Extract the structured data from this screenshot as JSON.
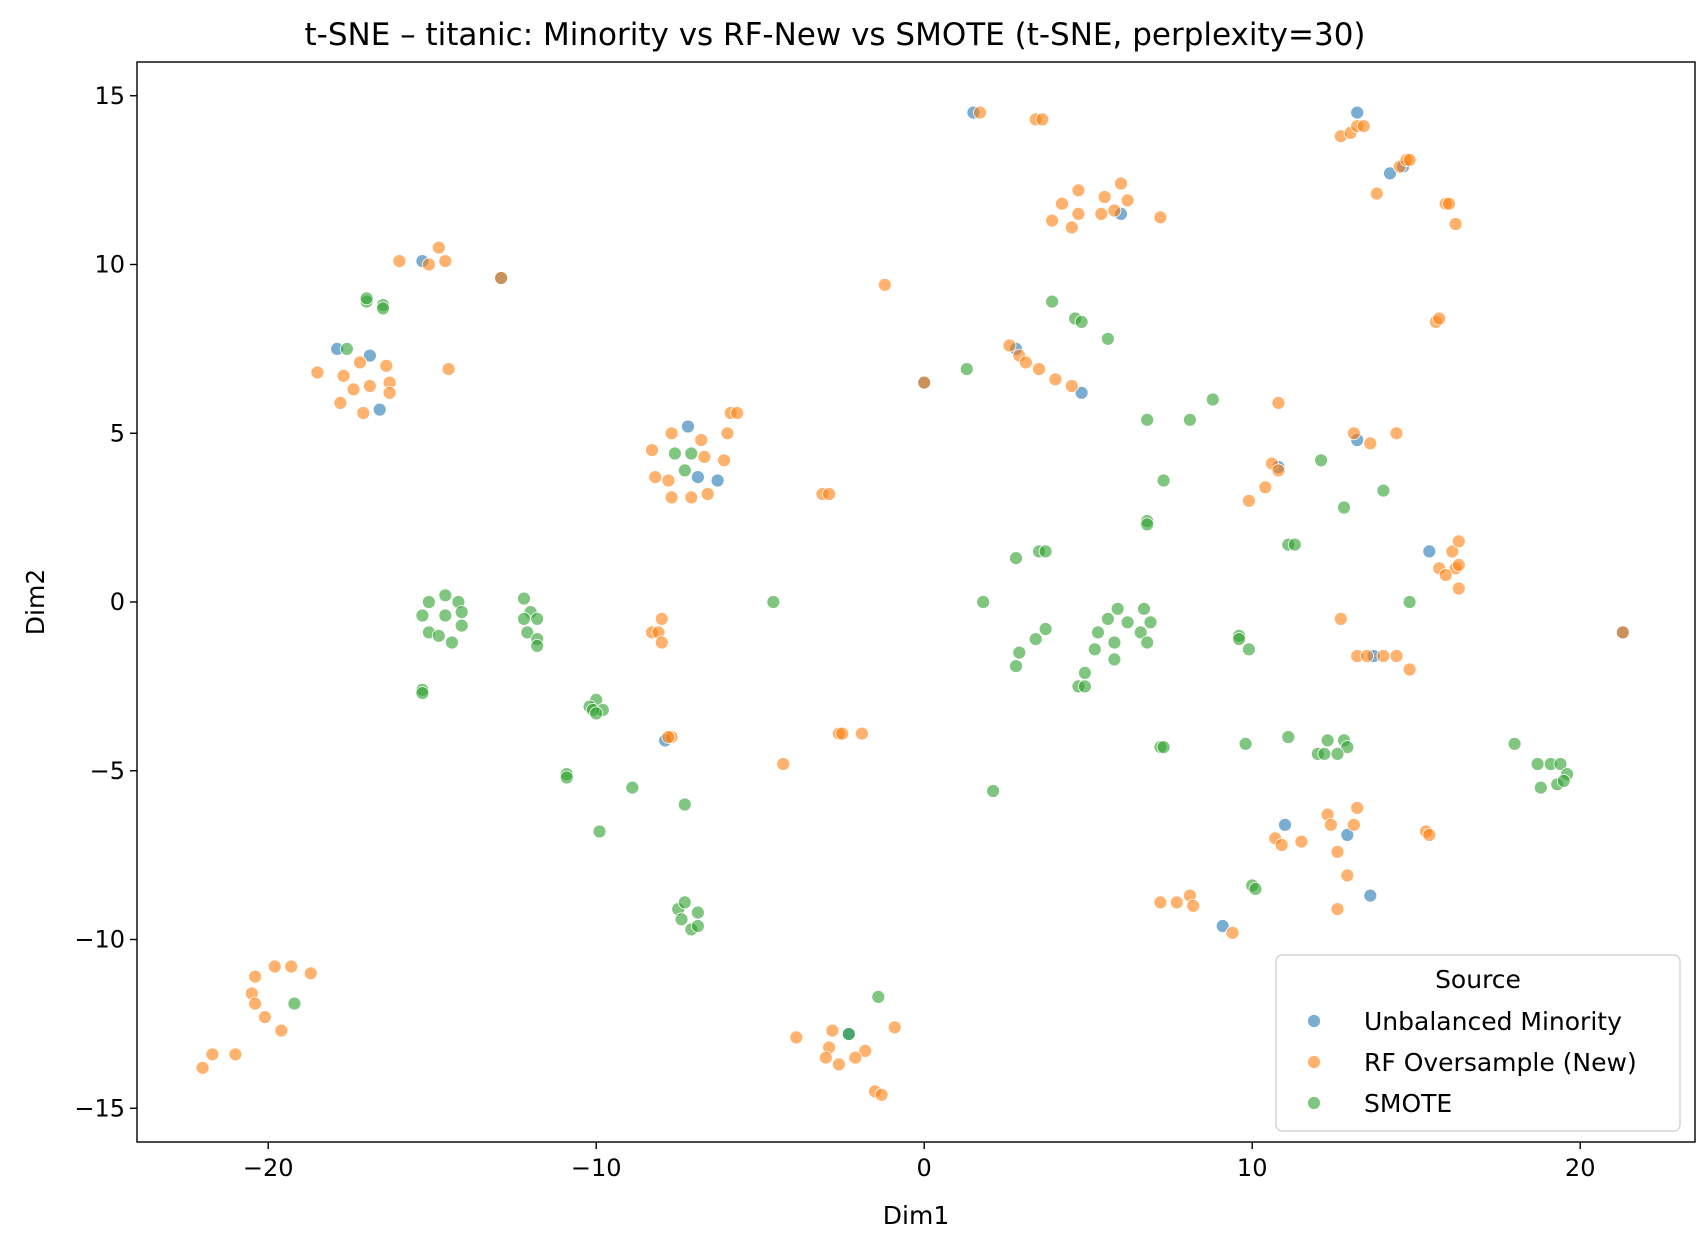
{
  "chart_data": {
    "type": "scatter",
    "title": "t-SNE – titanic: Minority vs RF-New vs SMOTE (t-SNE, perplexity=30)",
    "xlabel": "Dim1",
    "ylabel": "Dim2",
    "xlim": [
      -24,
      23.5
    ],
    "ylim": [
      -16,
      16
    ],
    "xticks": [
      -20,
      -10,
      0,
      10,
      20
    ],
    "xtick_labels": [
      "−20",
      "−10",
      "0",
      "10",
      "20"
    ],
    "yticks": [
      15,
      10,
      5,
      0,
      -5,
      -10,
      -15
    ],
    "ytick_labels": [
      "15",
      "10",
      "5",
      "0",
      "−5",
      "−10",
      "−15"
    ],
    "grid": false,
    "legend": {
      "title": "Source",
      "placement": "lower-right"
    },
    "series": [
      {
        "name": "Unbalanced Minority",
        "color": "#1f77b4",
        "points": [
          [
            1.5,
            14.5
          ],
          [
            13.2,
            14.5
          ],
          [
            14.2,
            12.7
          ],
          [
            14.6,
            12.9
          ],
          [
            6.0,
            11.5
          ],
          [
            -15.3,
            10.1
          ],
          [
            -12.9,
            9.6
          ],
          [
            -17.9,
            7.5
          ],
          [
            -16.9,
            7.3
          ],
          [
            -16.6,
            5.7
          ],
          [
            2.8,
            7.5
          ],
          [
            4.8,
            6.2
          ],
          [
            0.0,
            6.5
          ],
          [
            -7.2,
            5.2
          ],
          [
            -6.9,
            3.7
          ],
          [
            -6.3,
            3.6
          ],
          [
            10.8,
            4.0
          ],
          [
            13.2,
            4.8
          ],
          [
            15.4,
            1.5
          ],
          [
            21.3,
            -0.9
          ],
          [
            13.7,
            -1.6
          ],
          [
            -7.9,
            -4.1
          ],
          [
            -2.3,
            -12.8
          ],
          [
            11.0,
            -6.6
          ],
          [
            12.9,
            -6.9
          ],
          [
            13.6,
            -8.7
          ],
          [
            9.1,
            -9.6
          ]
        ]
      },
      {
        "name": "RF Oversample (New)",
        "color": "#ff7f0e",
        "points": [
          [
            1.7,
            14.5
          ],
          [
            3.4,
            14.3
          ],
          [
            3.6,
            14.3
          ],
          [
            12.7,
            13.8
          ],
          [
            13.0,
            13.9
          ],
          [
            13.2,
            14.1
          ],
          [
            13.4,
            14.1
          ],
          [
            14.5,
            12.9
          ],
          [
            14.7,
            13.1
          ],
          [
            14.8,
            13.1
          ],
          [
            13.8,
            12.1
          ],
          [
            15.9,
            11.8
          ],
          [
            16.0,
            11.8
          ],
          [
            16.2,
            11.2
          ],
          [
            15.6,
            8.3
          ],
          [
            15.7,
            8.4
          ],
          [
            4.7,
            12.2
          ],
          [
            6.0,
            12.4
          ],
          [
            5.5,
            12.0
          ],
          [
            6.2,
            11.9
          ],
          [
            4.2,
            11.8
          ],
          [
            3.9,
            11.3
          ],
          [
            4.7,
            11.5
          ],
          [
            5.4,
            11.5
          ],
          [
            5.8,
            11.6
          ],
          [
            4.5,
            11.1
          ],
          [
            7.2,
            11.4
          ],
          [
            -16.0,
            10.1
          ],
          [
            -15.1,
            10.0
          ],
          [
            -14.8,
            10.5
          ],
          [
            -14.6,
            10.1
          ],
          [
            -14.5,
            6.9
          ],
          [
            -12.9,
            9.6
          ],
          [
            -1.2,
            9.4
          ],
          [
            -18.5,
            6.8
          ],
          [
            -17.7,
            6.7
          ],
          [
            -17.2,
            7.1
          ],
          [
            -16.4,
            7.0
          ],
          [
            -16.3,
            6.5
          ],
          [
            -16.3,
            6.2
          ],
          [
            -17.4,
            6.3
          ],
          [
            -16.9,
            6.4
          ],
          [
            -17.8,
            5.9
          ],
          [
            -17.1,
            5.6
          ],
          [
            2.6,
            7.6
          ],
          [
            2.9,
            7.3
          ],
          [
            3.1,
            7.1
          ],
          [
            3.5,
            6.9
          ],
          [
            4.0,
            6.6
          ],
          [
            4.5,
            6.4
          ],
          [
            0.0,
            6.5
          ],
          [
            -5.9,
            5.6
          ],
          [
            -5.7,
            5.6
          ],
          [
            -7.7,
            5.0
          ],
          [
            -6.8,
            4.8
          ],
          [
            -6.0,
            5.0
          ],
          [
            -8.3,
            4.5
          ],
          [
            -6.7,
            4.3
          ],
          [
            -6.1,
            4.2
          ],
          [
            -8.2,
            3.7
          ],
          [
            -7.8,
            3.6
          ],
          [
            -7.7,
            3.1
          ],
          [
            -7.1,
            3.1
          ],
          [
            -6.6,
            3.2
          ],
          [
            -3.1,
            3.2
          ],
          [
            -2.9,
            3.2
          ],
          [
            10.8,
            5.9
          ],
          [
            10.6,
            4.1
          ],
          [
            10.8,
            3.9
          ],
          [
            13.1,
            5.0
          ],
          [
            13.6,
            4.7
          ],
          [
            14.4,
            5.0
          ],
          [
            10.4,
            3.4
          ],
          [
            9.9,
            3.0
          ],
          [
            16.1,
            1.5
          ],
          [
            16.3,
            1.8
          ],
          [
            15.7,
            1.0
          ],
          [
            16.2,
            1.0
          ],
          [
            16.3,
            1.1
          ],
          [
            15.9,
            0.8
          ],
          [
            16.3,
            0.4
          ],
          [
            21.3,
            -0.9
          ],
          [
            -8.0,
            -0.5
          ],
          [
            -8.3,
            -0.9
          ],
          [
            -8.1,
            -0.9
          ],
          [
            -8.0,
            -1.2
          ],
          [
            12.7,
            -0.5
          ],
          [
            13.2,
            -1.6
          ],
          [
            13.5,
            -1.6
          ],
          [
            14.0,
            -1.6
          ],
          [
            14.4,
            -1.6
          ],
          [
            14.8,
            -2.0
          ],
          [
            -7.7,
            -4.0
          ],
          [
            -7.8,
            -4.0
          ],
          [
            -2.6,
            -3.9
          ],
          [
            -2.5,
            -3.9
          ],
          [
            -1.9,
            -3.9
          ],
          [
            -4.3,
            -4.8
          ],
          [
            12.3,
            -6.3
          ],
          [
            12.4,
            -6.6
          ],
          [
            13.2,
            -6.1
          ],
          [
            13.1,
            -6.6
          ],
          [
            15.3,
            -6.8
          ],
          [
            15.4,
            -6.9
          ],
          [
            10.7,
            -7.0
          ],
          [
            10.9,
            -7.2
          ],
          [
            11.5,
            -7.1
          ],
          [
            12.6,
            -7.4
          ],
          [
            12.9,
            -8.1
          ],
          [
            12.6,
            -9.1
          ],
          [
            7.2,
            -8.9
          ],
          [
            7.7,
            -8.9
          ],
          [
            8.1,
            -8.7
          ],
          [
            8.2,
            -9.0
          ],
          [
            9.4,
            -9.8
          ],
          [
            -20.4,
            -11.1
          ],
          [
            -19.8,
            -10.8
          ],
          [
            -19.3,
            -10.8
          ],
          [
            -18.7,
            -11.0
          ],
          [
            -20.5,
            -11.6
          ],
          [
            -20.4,
            -11.9
          ],
          [
            -20.1,
            -12.3
          ],
          [
            -19.6,
            -12.7
          ],
          [
            -21.0,
            -13.4
          ],
          [
            -21.7,
            -13.4
          ],
          [
            -22.0,
            -13.8
          ],
          [
            -3.9,
            -12.9
          ],
          [
            -2.8,
            -12.7
          ],
          [
            -2.9,
            -13.2
          ],
          [
            -1.8,
            -13.3
          ],
          [
            -3.0,
            -13.5
          ],
          [
            -2.6,
            -13.7
          ],
          [
            -2.1,
            -13.5
          ],
          [
            -0.9,
            -12.6
          ],
          [
            -1.5,
            -14.5
          ],
          [
            -1.3,
            -14.6
          ]
        ]
      },
      {
        "name": "SMOTE",
        "color": "#2ca02c",
        "points": [
          [
            -17.0,
            8.9
          ],
          [
            -17.0,
            9.0
          ],
          [
            -16.5,
            8.8
          ],
          [
            -16.5,
            8.7
          ],
          [
            -17.6,
            7.5
          ],
          [
            3.9,
            8.9
          ],
          [
            4.6,
            8.4
          ],
          [
            4.8,
            8.3
          ],
          [
            5.6,
            7.8
          ],
          [
            1.3,
            6.9
          ],
          [
            6.8,
            5.4
          ],
          [
            8.1,
            5.4
          ],
          [
            8.8,
            6.0
          ],
          [
            -7.6,
            4.4
          ],
          [
            -7.1,
            4.4
          ],
          [
            -7.3,
            3.9
          ],
          [
            7.3,
            3.6
          ],
          [
            12.1,
            4.2
          ],
          [
            14.0,
            3.3
          ],
          [
            6.8,
            2.4
          ],
          [
            6.8,
            2.3
          ],
          [
            12.8,
            2.8
          ],
          [
            3.5,
            1.5
          ],
          [
            3.7,
            1.5
          ],
          [
            2.8,
            1.3
          ],
          [
            11.1,
            1.7
          ],
          [
            11.3,
            1.7
          ],
          [
            -14.6,
            0.2
          ],
          [
            -14.2,
            0.0
          ],
          [
            -15.1,
            0.0
          ],
          [
            -14.1,
            -0.3
          ],
          [
            -15.3,
            -0.4
          ],
          [
            -14.6,
            -0.4
          ],
          [
            -14.1,
            -0.7
          ],
          [
            -15.1,
            -0.9
          ],
          [
            -14.8,
            -1.0
          ],
          [
            -14.4,
            -1.2
          ],
          [
            -12.2,
            0.1
          ],
          [
            -12.0,
            -0.3
          ],
          [
            -11.8,
            -0.5
          ],
          [
            -12.2,
            -0.5
          ],
          [
            -12.1,
            -0.9
          ],
          [
            -11.8,
            -1.1
          ],
          [
            -11.8,
            -1.3
          ],
          [
            -4.6,
            0.0
          ],
          [
            1.8,
            0.0
          ],
          [
            5.9,
            -0.2
          ],
          [
            6.7,
            -0.2
          ],
          [
            5.6,
            -0.5
          ],
          [
            6.2,
            -0.6
          ],
          [
            6.9,
            -0.6
          ],
          [
            5.3,
            -0.9
          ],
          [
            6.6,
            -0.9
          ],
          [
            5.8,
            -1.2
          ],
          [
            6.8,
            -1.2
          ],
          [
            5.2,
            -1.4
          ],
          [
            5.8,
            -1.7
          ],
          [
            14.8,
            0.0
          ],
          [
            3.7,
            -0.8
          ],
          [
            3.4,
            -1.1
          ],
          [
            2.9,
            -1.5
          ],
          [
            2.8,
            -1.9
          ],
          [
            9.6,
            -1.0
          ],
          [
            9.6,
            -1.1
          ],
          [
            9.9,
            -1.4
          ],
          [
            4.9,
            -2.1
          ],
          [
            4.7,
            -2.5
          ],
          [
            4.9,
            -2.5
          ],
          [
            -15.3,
            -2.6
          ],
          [
            -15.3,
            -2.7
          ],
          [
            -10.0,
            -2.9
          ],
          [
            -10.2,
            -3.1
          ],
          [
            -9.8,
            -3.2
          ],
          [
            -10.1,
            -3.2
          ],
          [
            -10.0,
            -3.3
          ],
          [
            -10.9,
            -5.1
          ],
          [
            -10.9,
            -5.2
          ],
          [
            -8.9,
            -5.5
          ],
          [
            -7.3,
            -6.0
          ],
          [
            -9.9,
            -6.8
          ],
          [
            2.1,
            -5.6
          ],
          [
            7.2,
            -4.3
          ],
          [
            7.3,
            -4.3
          ],
          [
            9.8,
            -4.2
          ],
          [
            11.1,
            -4.0
          ],
          [
            12.3,
            -4.1
          ],
          [
            12.8,
            -4.1
          ],
          [
            12.9,
            -4.3
          ],
          [
            12.0,
            -4.5
          ],
          [
            12.2,
            -4.5
          ],
          [
            12.6,
            -4.5
          ],
          [
            18.0,
            -4.2
          ],
          [
            18.7,
            -4.8
          ],
          [
            19.1,
            -4.8
          ],
          [
            19.4,
            -4.8
          ],
          [
            19.6,
            -5.1
          ],
          [
            18.8,
            -5.5
          ],
          [
            19.3,
            -5.4
          ],
          [
            19.5,
            -5.3
          ],
          [
            10.0,
            -8.4
          ],
          [
            10.1,
            -8.5
          ],
          [
            -7.5,
            -9.1
          ],
          [
            -7.3,
            -8.9
          ],
          [
            -6.9,
            -9.2
          ],
          [
            -7.4,
            -9.4
          ],
          [
            -7.1,
            -9.7
          ],
          [
            -6.9,
            -9.6
          ],
          [
            -19.2,
            -11.9
          ],
          [
            -1.4,
            -11.7
          ],
          [
            -2.3,
            -12.8
          ]
        ]
      }
    ]
  }
}
